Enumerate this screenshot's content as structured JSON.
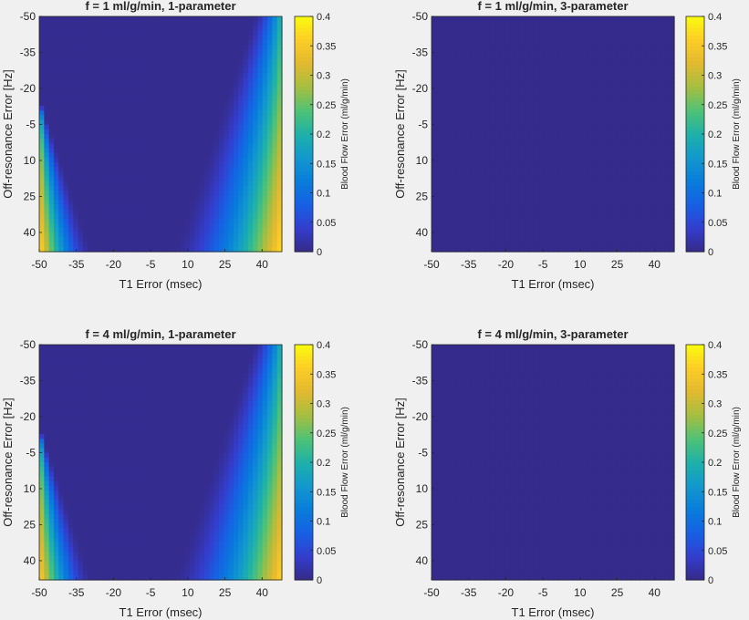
{
  "chart_data": [
    {
      "type": "heatmap",
      "title": "f = 1 ml/g/min, 1-parameter",
      "xlabel": "T1 Error (msec)",
      "ylabel": "Off-resonance Error [Hz]",
      "x_ticks": [
        "-50",
        "-35",
        "-20",
        "-5",
        "10",
        "25",
        "40"
      ],
      "y_ticks": [
        "-50",
        "-35",
        "-20",
        "-5",
        "10",
        "25",
        "40"
      ],
      "xlim": [
        -50,
        48
      ],
      "ylim": [
        -50,
        48
      ],
      "y_reversed": true,
      "colorbar": {
        "label": "Blood Flow Error (ml/g/min)",
        "ticks": [
          "0",
          "0.05",
          "0.1",
          "0.15",
          "0.2",
          "0.25",
          "0.3",
          "0.35",
          "0.4"
        ],
        "range": [
          0,
          0.4
        ]
      },
      "pattern": "parabolic",
      "base": 0.005,
      "max_value": 0.38
    },
    {
      "type": "heatmap",
      "title": "f = 1 ml/g/min, 3-parameter",
      "xlabel": "T1 Error (msec)",
      "ylabel": "Off-resonance Error [Hz]",
      "x_ticks": [
        "-50",
        "-35",
        "-20",
        "-5",
        "10",
        "25",
        "40"
      ],
      "y_ticks": [
        "-50",
        "-35",
        "-20",
        "-5",
        "10",
        "25",
        "40"
      ],
      "xlim": [
        -50,
        48
      ],
      "ylim": [
        -50,
        48
      ],
      "y_reversed": true,
      "colorbar": {
        "label": "Blood Flow Error (ml/g/min)",
        "ticks": [
          "0",
          "0.05",
          "0.1",
          "0.15",
          "0.2",
          "0.25",
          "0.3",
          "0.35",
          "0.4"
        ],
        "range": [
          0,
          0.4
        ]
      },
      "pattern": "uniform",
      "base": 0.003,
      "max_value": 0.003
    },
    {
      "type": "heatmap",
      "title": "f = 4 ml/g/min, 1-parameter",
      "xlabel": "T1 Error (msec)",
      "ylabel": "Off-resonance Error [Hz]",
      "x_ticks": [
        "-50",
        "-35",
        "-20",
        "-5",
        "10",
        "25",
        "40"
      ],
      "y_ticks": [
        "-50",
        "-35",
        "-20",
        "-5",
        "10",
        "25",
        "40"
      ],
      "xlim": [
        -50,
        48
      ],
      "ylim": [
        -50,
        48
      ],
      "y_reversed": true,
      "colorbar": {
        "label": "Blood Flow Error (ml/g/min)",
        "ticks": [
          "0",
          "0.05",
          "0.1",
          "0.15",
          "0.2",
          "0.25",
          "0.3",
          "0.35",
          "0.4"
        ],
        "range": [
          0,
          0.4
        ]
      },
      "pattern": "parabolic",
      "base": 0.005,
      "max_value": 0.37
    },
    {
      "type": "heatmap",
      "title": "f = 4 ml/g/min, 3-parameter",
      "xlabel": "T1 Error (msec)",
      "ylabel": "Off-resonance Error [Hz]",
      "x_ticks": [
        "-50",
        "-35",
        "-20",
        "-5",
        "10",
        "25",
        "40"
      ],
      "y_ticks": [
        "-50",
        "-35",
        "-20",
        "-5",
        "10",
        "25",
        "40"
      ],
      "xlim": [
        -50,
        48
      ],
      "ylim": [
        -50,
        48
      ],
      "y_reversed": true,
      "colorbar": {
        "label": "Blood Flow Error (ml/g/min)",
        "ticks": [
          "0",
          "0.05",
          "0.1",
          "0.15",
          "0.2",
          "0.25",
          "0.3",
          "0.35",
          "0.4"
        ],
        "range": [
          0,
          0.4
        ]
      },
      "pattern": "uniform",
      "base": 0.003,
      "max_value": 0.003
    }
  ],
  "colors": {
    "colormap": "parula",
    "background": "#f0f0f0",
    "text": "#262626"
  }
}
